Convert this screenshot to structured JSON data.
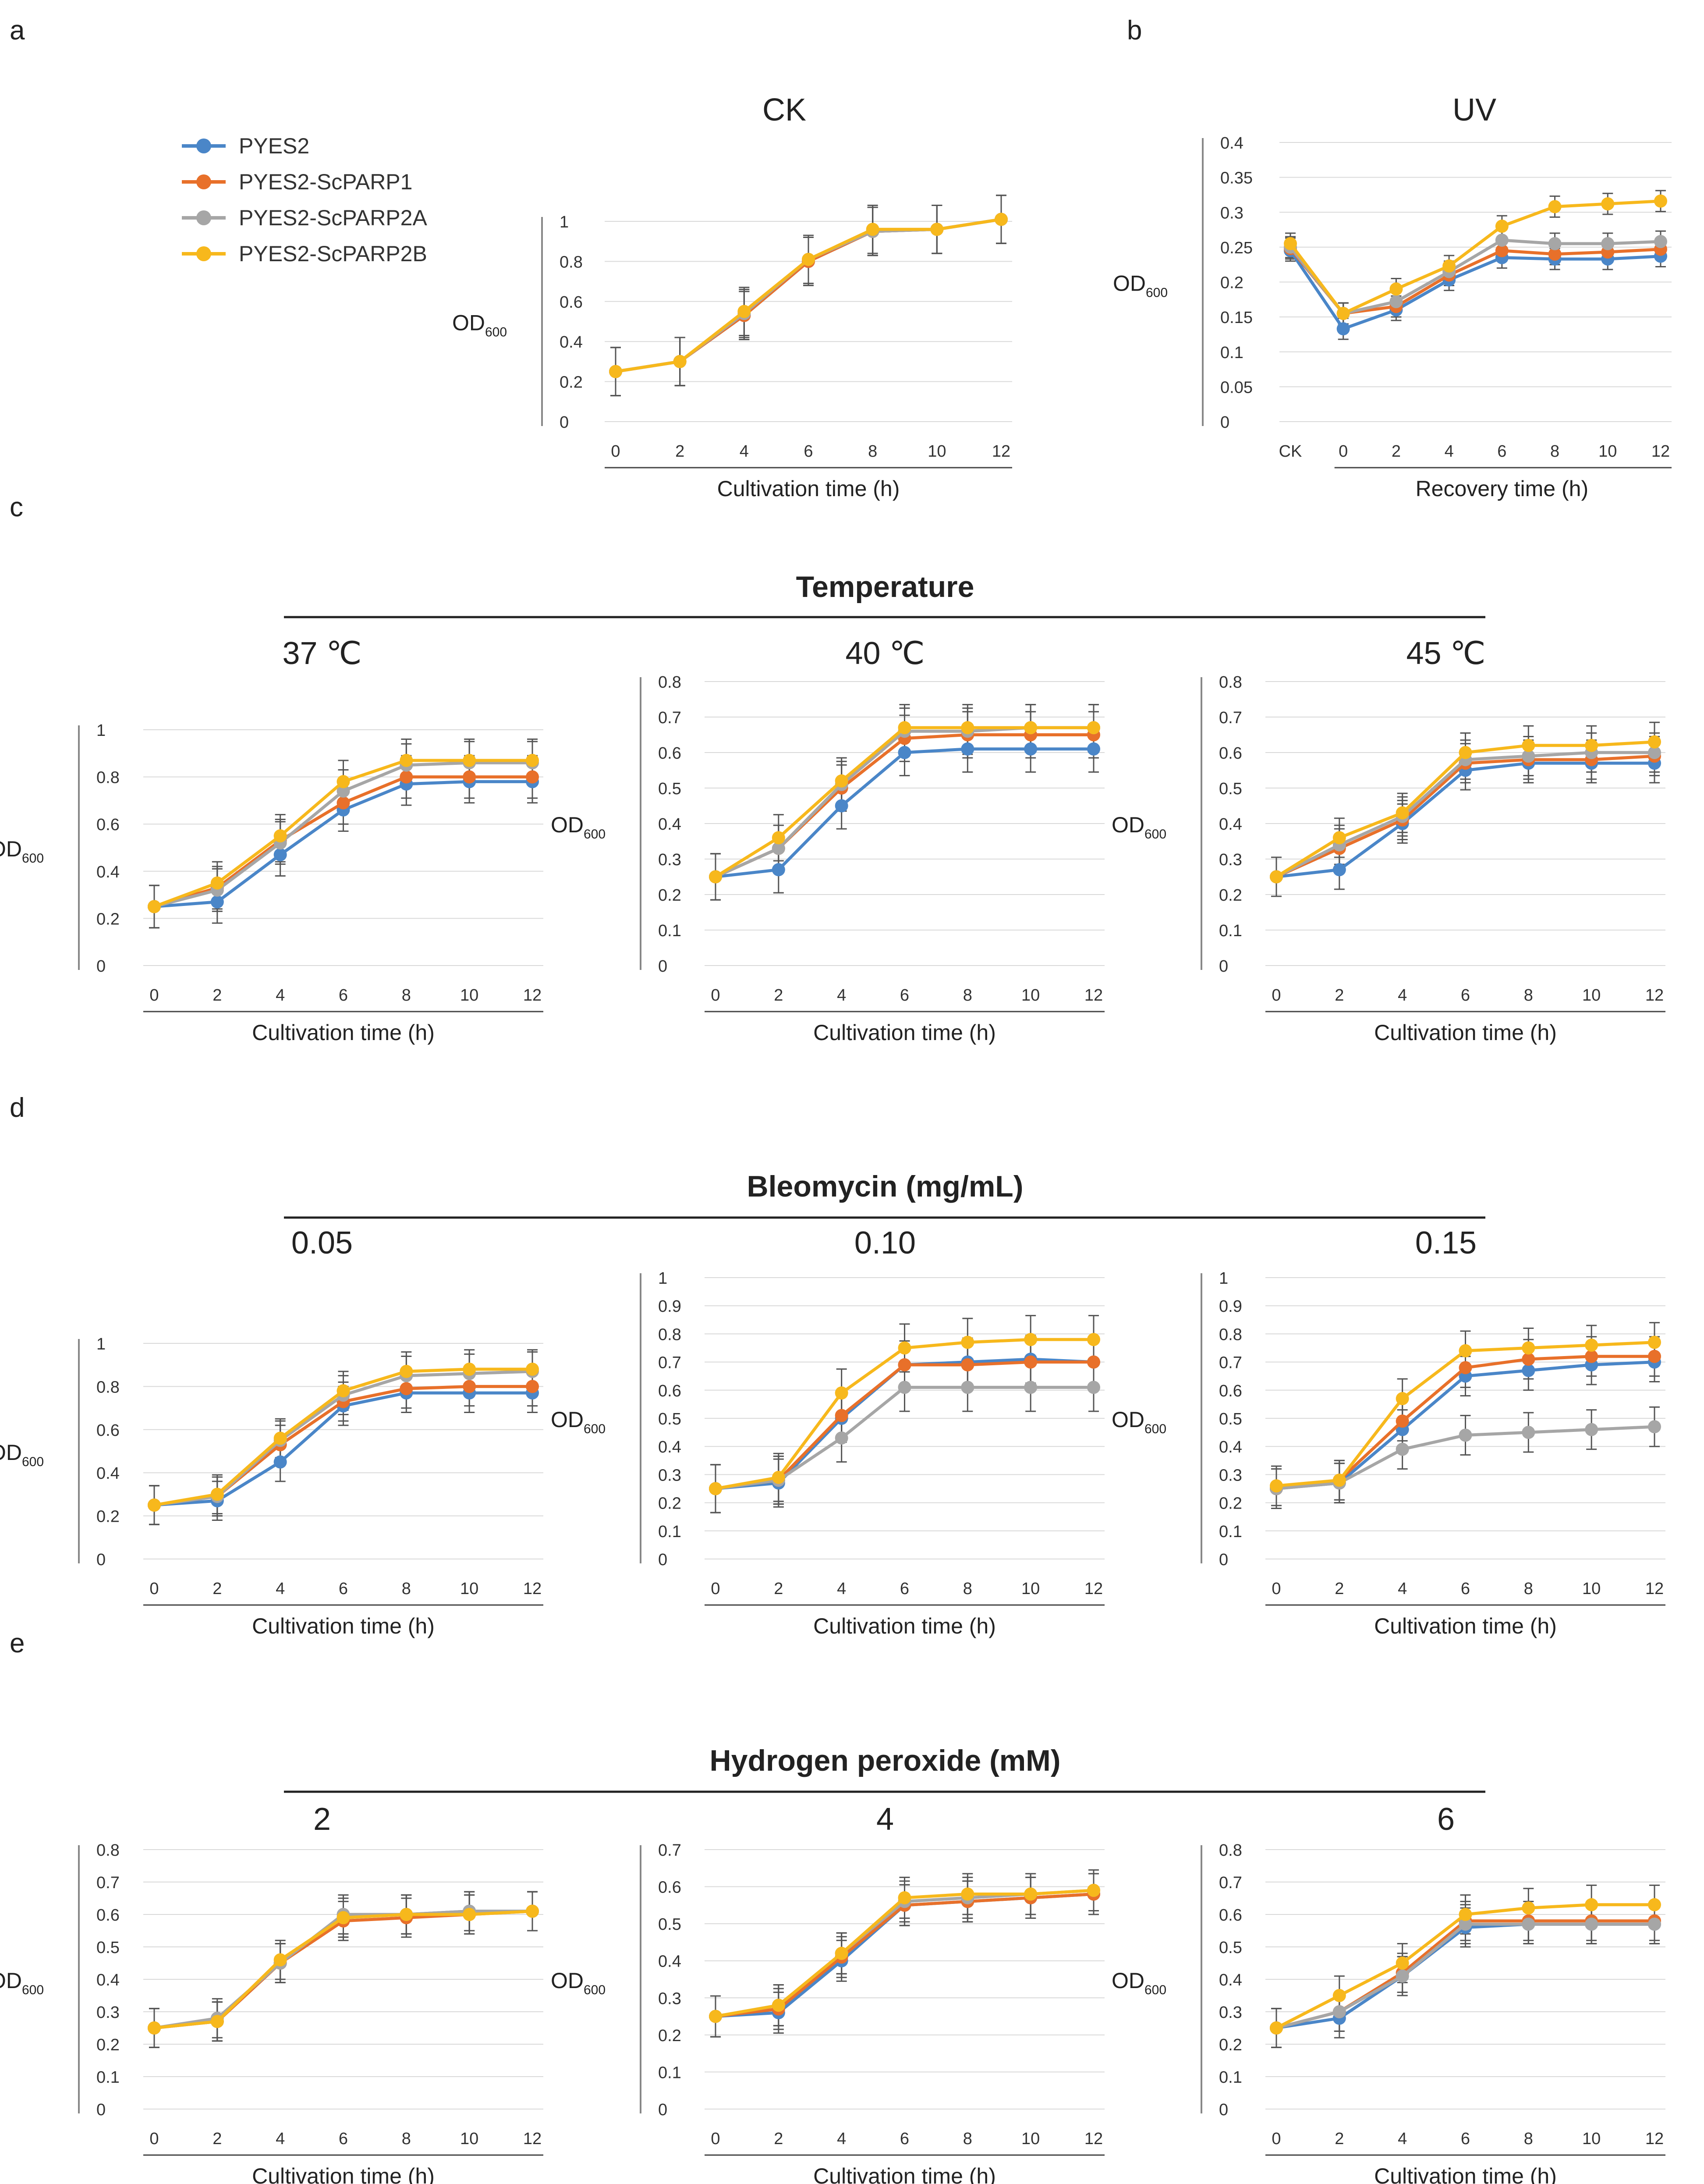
{
  "colors": {
    "PYES2": "#4a86c8",
    "PYES2-ScPARP1": "#e8702a",
    "PYES2-ScPARP2A": "#a6a6a6",
    "PYES2-ScPARP2B": "#f7b81c",
    "axis": "#888888",
    "text": "#222222"
  },
  "legend": [
    "PYES2",
    "PYES2-ScPARP1",
    "PYES2-ScPARP2A",
    "PYES2-ScPARP2B"
  ],
  "panel_letters": [
    "a",
    "b",
    "c",
    "d",
    "e"
  ],
  "group_titles": {
    "c": "Temperature",
    "d": "Bleomycin (mg/mL)",
    "e": "Hydrogen peroxide (mM)"
  },
  "common": {
    "ylabel": "OD",
    "ylabel_sub": "600",
    "xlabel": "Cultivation time (h)",
    "x": [
      0,
      2,
      4,
      6,
      8,
      10,
      12
    ]
  },
  "chart_data": [
    {
      "id": "a",
      "type": "line",
      "title": "CK",
      "xlabel": "Cultivation time (h)",
      "ylabel": "OD600",
      "x": [
        0,
        2,
        4,
        6,
        8,
        10,
        12
      ],
      "ylim": [
        0,
        1
      ],
      "yticks": [
        0,
        0.2,
        0.4,
        0.6,
        0.8,
        1
      ],
      "series": [
        {
          "name": "PYES2",
          "values": [
            0.25,
            0.3,
            0.53,
            0.8,
            0.95,
            0.96,
            1.01
          ]
        },
        {
          "name": "PYES2-ScPARP1",
          "values": [
            0.25,
            0.3,
            0.53,
            0.8,
            0.95,
            0.96,
            1.01
          ]
        },
        {
          "name": "PYES2-ScPARP2A",
          "values": [
            0.25,
            0.3,
            0.54,
            0.81,
            0.95,
            0.96,
            1.01
          ]
        },
        {
          "name": "PYES2-ScPARP2B",
          "values": [
            0.25,
            0.3,
            0.55,
            0.81,
            0.96,
            0.96,
            1.01
          ]
        }
      ],
      "error": [
        0.12,
        0.12,
        0.12,
        0.12,
        0.12,
        0.12,
        0.12
      ]
    },
    {
      "id": "b",
      "type": "line",
      "title": "UV",
      "xlabel": "Recovery time (h)",
      "ylabel": "OD600",
      "x": [
        "CK",
        "0",
        "2",
        "4",
        "6",
        "8",
        "10",
        "12"
      ],
      "ylim": [
        0,
        0.4
      ],
      "yticks": [
        0,
        0.05,
        0.1,
        0.15,
        0.2,
        0.25,
        0.3,
        0.35,
        0.4
      ],
      "series": [
        {
          "name": "PYES2",
          "values": [
            0.245,
            0.133,
            0.16,
            0.203,
            0.235,
            0.233,
            0.233,
            0.237
          ]
        },
        {
          "name": "PYES2-ScPARP1",
          "values": [
            0.248,
            0.155,
            0.165,
            0.21,
            0.245,
            0.24,
            0.243,
            0.247
          ]
        },
        {
          "name": "PYES2-ScPARP2A",
          "values": [
            0.25,
            0.155,
            0.172,
            0.215,
            0.26,
            0.255,
            0.255,
            0.258
          ]
        },
        {
          "name": "PYES2-ScPARP2B",
          "values": [
            0.255,
            0.155,
            0.19,
            0.223,
            0.28,
            0.308,
            0.312,
            0.316
          ]
        }
      ],
      "error": [
        0.015,
        0.015,
        0.015,
        0.015,
        0.015,
        0.015,
        0.015,
        0.015
      ]
    },
    {
      "id": "c1",
      "type": "line",
      "title": "37 ℃",
      "xlabel": "Cultivation time (h)",
      "ylabel": "OD600",
      "x": [
        0,
        2,
        4,
        6,
        8,
        10,
        12
      ],
      "ylim": [
        0,
        1
      ],
      "yticks": [
        0,
        0.2,
        0.4,
        0.6,
        0.8,
        1
      ],
      "series": [
        {
          "name": "PYES2",
          "values": [
            0.25,
            0.27,
            0.47,
            0.66,
            0.77,
            0.78,
            0.78
          ]
        },
        {
          "name": "PYES2-ScPARP1",
          "values": [
            0.25,
            0.33,
            0.53,
            0.69,
            0.8,
            0.8,
            0.8
          ]
        },
        {
          "name": "PYES2-ScPARP2A",
          "values": [
            0.25,
            0.32,
            0.52,
            0.74,
            0.85,
            0.86,
            0.86
          ]
        },
        {
          "name": "PYES2-ScPARP2B",
          "values": [
            0.25,
            0.35,
            0.55,
            0.78,
            0.87,
            0.87,
            0.87
          ]
        }
      ],
      "error": [
        0.09,
        0.09,
        0.09,
        0.09,
        0.09,
        0.09,
        0.09
      ]
    },
    {
      "id": "c2",
      "type": "line",
      "title": "40 ℃",
      "xlabel": "Cultivation time (h)",
      "ylabel": "OD600",
      "x": [
        0,
        2,
        4,
        6,
        8,
        10,
        12
      ],
      "ylim": [
        0,
        0.8
      ],
      "yticks": [
        0,
        0.1,
        0.2,
        0.3,
        0.4,
        0.5,
        0.6,
        0.7,
        0.8
      ],
      "series": [
        {
          "name": "PYES2",
          "values": [
            0.25,
            0.27,
            0.45,
            0.6,
            0.61,
            0.61,
            0.61
          ]
        },
        {
          "name": "PYES2-ScPARP1",
          "values": [
            0.25,
            0.33,
            0.5,
            0.64,
            0.65,
            0.65,
            0.65
          ]
        },
        {
          "name": "PYES2-ScPARP2A",
          "values": [
            0.25,
            0.33,
            0.51,
            0.66,
            0.66,
            0.67,
            0.67
          ]
        },
        {
          "name": "PYES2-ScPARP2B",
          "values": [
            0.25,
            0.36,
            0.52,
            0.67,
            0.67,
            0.67,
            0.67
          ]
        }
      ],
      "error": [
        0.065,
        0.065,
        0.065,
        0.065,
        0.065,
        0.065,
        0.065
      ]
    },
    {
      "id": "c3",
      "type": "line",
      "title": "45 ℃",
      "xlabel": "Cultivation time (h)",
      "ylabel": "OD600",
      "x": [
        0,
        2,
        4,
        6,
        8,
        10,
        12
      ],
      "ylim": [
        0,
        0.8
      ],
      "yticks": [
        0,
        0.1,
        0.2,
        0.3,
        0.4,
        0.5,
        0.6,
        0.7,
        0.8
      ],
      "series": [
        {
          "name": "PYES2",
          "values": [
            0.25,
            0.27,
            0.4,
            0.55,
            0.57,
            0.57,
            0.57
          ]
        },
        {
          "name": "PYES2-ScPARP1",
          "values": [
            0.25,
            0.33,
            0.41,
            0.57,
            0.58,
            0.58,
            0.59
          ]
        },
        {
          "name": "PYES2-ScPARP2A",
          "values": [
            0.25,
            0.34,
            0.42,
            0.58,
            0.59,
            0.6,
            0.6
          ]
        },
        {
          "name": "PYES2-ScPARP2B",
          "values": [
            0.25,
            0.36,
            0.43,
            0.6,
            0.62,
            0.62,
            0.63
          ]
        }
      ],
      "error": [
        0.055,
        0.055,
        0.055,
        0.055,
        0.055,
        0.055,
        0.055
      ]
    },
    {
      "id": "d1",
      "type": "line",
      "title": "0.05",
      "xlabel": "Cultivation time (h)",
      "ylabel": "OD600",
      "x": [
        0,
        2,
        4,
        6,
        8,
        10,
        12
      ],
      "ylim": [
        0,
        1
      ],
      "yticks": [
        0,
        0.2,
        0.4,
        0.6,
        0.8,
        1
      ],
      "series": [
        {
          "name": "PYES2",
          "values": [
            0.25,
            0.27,
            0.45,
            0.71,
            0.77,
            0.77,
            0.77
          ]
        },
        {
          "name": "PYES2-ScPARP1",
          "values": [
            0.25,
            0.29,
            0.53,
            0.73,
            0.79,
            0.8,
            0.8
          ]
        },
        {
          "name": "PYES2-ScPARP2A",
          "values": [
            0.25,
            0.29,
            0.55,
            0.76,
            0.85,
            0.86,
            0.87
          ]
        },
        {
          "name": "PYES2-ScPARP2B",
          "values": [
            0.25,
            0.3,
            0.56,
            0.78,
            0.87,
            0.88,
            0.88
          ]
        }
      ],
      "error": [
        0.09,
        0.09,
        0.09,
        0.09,
        0.09,
        0.09,
        0.09
      ]
    },
    {
      "id": "d2",
      "type": "line",
      "title": "0.10",
      "xlabel": "Cultivation time (h)",
      "ylabel": "OD600",
      "x": [
        0,
        2,
        4,
        6,
        8,
        10,
        12
      ],
      "ylim": [
        0,
        1
      ],
      "yticks": [
        0,
        0.1,
        0.2,
        0.3,
        0.4,
        0.5,
        0.6,
        0.7,
        0.8,
        0.9,
        1
      ],
      "series": [
        {
          "name": "PYES2",
          "values": [
            0.25,
            0.27,
            0.5,
            0.69,
            0.7,
            0.71,
            0.7
          ]
        },
        {
          "name": "PYES2-ScPARP1",
          "values": [
            0.25,
            0.28,
            0.51,
            0.69,
            0.69,
            0.7,
            0.7
          ]
        },
        {
          "name": "PYES2-ScPARP2A",
          "values": [
            0.25,
            0.28,
            0.43,
            0.61,
            0.61,
            0.61,
            0.61
          ]
        },
        {
          "name": "PYES2-ScPARP2B",
          "values": [
            0.25,
            0.29,
            0.59,
            0.75,
            0.77,
            0.78,
            0.78
          ]
        }
      ],
      "error": [
        0.085,
        0.085,
        0.085,
        0.085,
        0.085,
        0.085,
        0.085
      ]
    },
    {
      "id": "d3",
      "type": "line",
      "title": "0.15",
      "xlabel": "Cultivation time (h)",
      "ylabel": "OD600",
      "x": [
        0,
        2,
        4,
        6,
        8,
        10,
        12
      ],
      "ylim": [
        0,
        1
      ],
      "yticks": [
        0,
        0.1,
        0.2,
        0.3,
        0.4,
        0.5,
        0.6,
        0.7,
        0.8,
        0.9,
        1
      ],
      "series": [
        {
          "name": "PYES2",
          "values": [
            0.25,
            0.27,
            0.46,
            0.65,
            0.67,
            0.69,
            0.7
          ]
        },
        {
          "name": "PYES2-ScPARP1",
          "values": [
            0.25,
            0.28,
            0.49,
            0.68,
            0.71,
            0.72,
            0.72
          ]
        },
        {
          "name": "PYES2-ScPARP2A",
          "values": [
            0.25,
            0.27,
            0.39,
            0.44,
            0.45,
            0.46,
            0.47
          ]
        },
        {
          "name": "PYES2-ScPARP2B",
          "values": [
            0.26,
            0.28,
            0.57,
            0.74,
            0.75,
            0.76,
            0.77
          ]
        }
      ],
      "error": [
        0.07,
        0.07,
        0.07,
        0.07,
        0.07,
        0.07,
        0.07
      ]
    },
    {
      "id": "e1",
      "type": "line",
      "title": "2",
      "xlabel": "Cultivation time (h)",
      "ylabel": "OD600",
      "x": [
        0,
        2,
        4,
        6,
        8,
        10,
        12
      ],
      "ylim": [
        0,
        0.8
      ],
      "yticks": [
        0,
        0.1,
        0.2,
        0.3,
        0.4,
        0.5,
        0.6,
        0.7,
        0.8
      ],
      "series": [
        {
          "name": "PYES2",
          "values": [
            0.25,
            0.27,
            0.45,
            0.59,
            0.6,
            0.61,
            0.61
          ]
        },
        {
          "name": "PYES2-ScPARP1",
          "values": [
            0.25,
            0.27,
            0.45,
            0.58,
            0.59,
            0.6,
            0.61
          ]
        },
        {
          "name": "PYES2-ScPARP2A",
          "values": [
            0.25,
            0.28,
            0.45,
            0.6,
            0.6,
            0.61,
            0.61
          ]
        },
        {
          "name": "PYES2-ScPARP2B",
          "values": [
            0.25,
            0.27,
            0.46,
            0.59,
            0.6,
            0.6,
            0.61
          ]
        }
      ],
      "error": [
        0.06,
        0.06,
        0.06,
        0.06,
        0.06,
        0.06,
        0.06
      ]
    },
    {
      "id": "e2",
      "type": "line",
      "title": "4",
      "xlabel": "Cultivation time (h)",
      "ylabel": "OD600",
      "x": [
        0,
        2,
        4,
        6,
        8,
        10,
        12
      ],
      "ylim": [
        0,
        0.7
      ],
      "yticks": [
        0,
        0.1,
        0.2,
        0.3,
        0.4,
        0.5,
        0.6,
        0.7
      ],
      "series": [
        {
          "name": "PYES2",
          "values": [
            0.25,
            0.26,
            0.4,
            0.55,
            0.56,
            0.57,
            0.58
          ]
        },
        {
          "name": "PYES2-ScPARP1",
          "values": [
            0.25,
            0.27,
            0.41,
            0.55,
            0.56,
            0.57,
            0.58
          ]
        },
        {
          "name": "PYES2-ScPARP2A",
          "values": [
            0.25,
            0.28,
            0.42,
            0.56,
            0.57,
            0.58,
            0.59
          ]
        },
        {
          "name": "PYES2-ScPARP2B",
          "values": [
            0.25,
            0.28,
            0.42,
            0.57,
            0.58,
            0.58,
            0.59
          ]
        }
      ],
      "error": [
        0.055,
        0.055,
        0.055,
        0.055,
        0.055,
        0.055,
        0.055
      ]
    },
    {
      "id": "e3",
      "type": "line",
      "title": "6",
      "xlabel": "Cultivation time (h)",
      "ylabel": "OD600",
      "x": [
        0,
        2,
        4,
        6,
        8,
        10,
        12
      ],
      "ylim": [
        0,
        0.8
      ],
      "yticks": [
        0,
        0.1,
        0.2,
        0.3,
        0.4,
        0.5,
        0.6,
        0.7,
        0.8
      ],
      "series": [
        {
          "name": "PYES2",
          "values": [
            0.25,
            0.28,
            0.41,
            0.56,
            0.57,
            0.57,
            0.57
          ]
        },
        {
          "name": "PYES2-ScPARP1",
          "values": [
            0.25,
            0.3,
            0.42,
            0.58,
            0.58,
            0.58,
            0.58
          ]
        },
        {
          "name": "PYES2-ScPARP2A",
          "values": [
            0.25,
            0.3,
            0.41,
            0.57,
            0.57,
            0.57,
            0.57
          ]
        },
        {
          "name": "PYES2-ScPARP2B",
          "values": [
            0.25,
            0.35,
            0.45,
            0.6,
            0.62,
            0.63,
            0.63
          ]
        }
      ],
      "error": [
        0.06,
        0.06,
        0.06,
        0.06,
        0.06,
        0.06,
        0.06
      ]
    }
  ]
}
